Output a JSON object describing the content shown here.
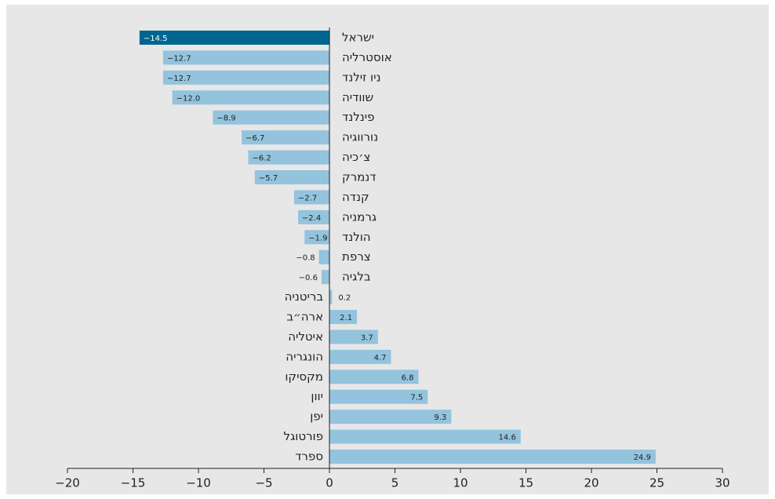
{
  "chart_data": {
    "type": "barh",
    "categories": [
      "ישראל",
      "אוסטרליה",
      "ניו זילנד",
      "שוודיה",
      "פינלנד",
      "נורווגיה",
      "צ׳כיה",
      "דנמרק",
      "קנדה",
      "גרמניה",
      "הולנד",
      "צרפת",
      "בלגיה",
      "בריטניה",
      "ארה״ב",
      "איטליה",
      "הונגריה",
      "מקסיקו",
      "יוון",
      "יפן",
      "פורטוגל",
      "ספרד"
    ],
    "values": [
      -14.5,
      -12.7,
      -12.7,
      -12.0,
      -8.9,
      -6.7,
      -6.2,
      -5.7,
      -2.7,
      -2.4,
      -1.9,
      -0.8,
      -0.6,
      0.2,
      2.1,
      3.7,
      4.7,
      6.8,
      7.5,
      9.3,
      14.6,
      24.9
    ],
    "value_labels": [
      "−14.5",
      "−12.7",
      "−12.7",
      "−12.0",
      "−8.9",
      "−6.7",
      "−6.2",
      "−5.7",
      "−2.7",
      "−2.4",
      "−1.9",
      "−0.8",
      "−0.6",
      "0.2",
      "2.1",
      "3.7",
      "4.7",
      "6.8",
      "7.5",
      "9.3",
      "14.6",
      "24.9"
    ],
    "colors": [
      "#00658f",
      "#94c3dd",
      "#94c3dd",
      "#94c3dd",
      "#94c3dd",
      "#94c3dd",
      "#94c3dd",
      "#94c3dd",
      "#94c3dd",
      "#94c3dd",
      "#94c3dd",
      "#94c3dd",
      "#94c3dd",
      "#94c3dd",
      "#94c3dd",
      "#94c3dd",
      "#94c3dd",
      "#94c3dd",
      "#94c3dd",
      "#94c3dd",
      "#94c3dd",
      "#94c3dd"
    ],
    "xlim": [
      -20,
      30
    ],
    "xticks": [
      {
        "value": -20,
        "label": "−20"
      },
      {
        "value": -15,
        "label": "−15"
      },
      {
        "value": -10,
        "label": "−10"
      },
      {
        "value": -5,
        "label": "−5"
      },
      0,
      5,
      10,
      15,
      20,
      25,
      30
    ]
  }
}
